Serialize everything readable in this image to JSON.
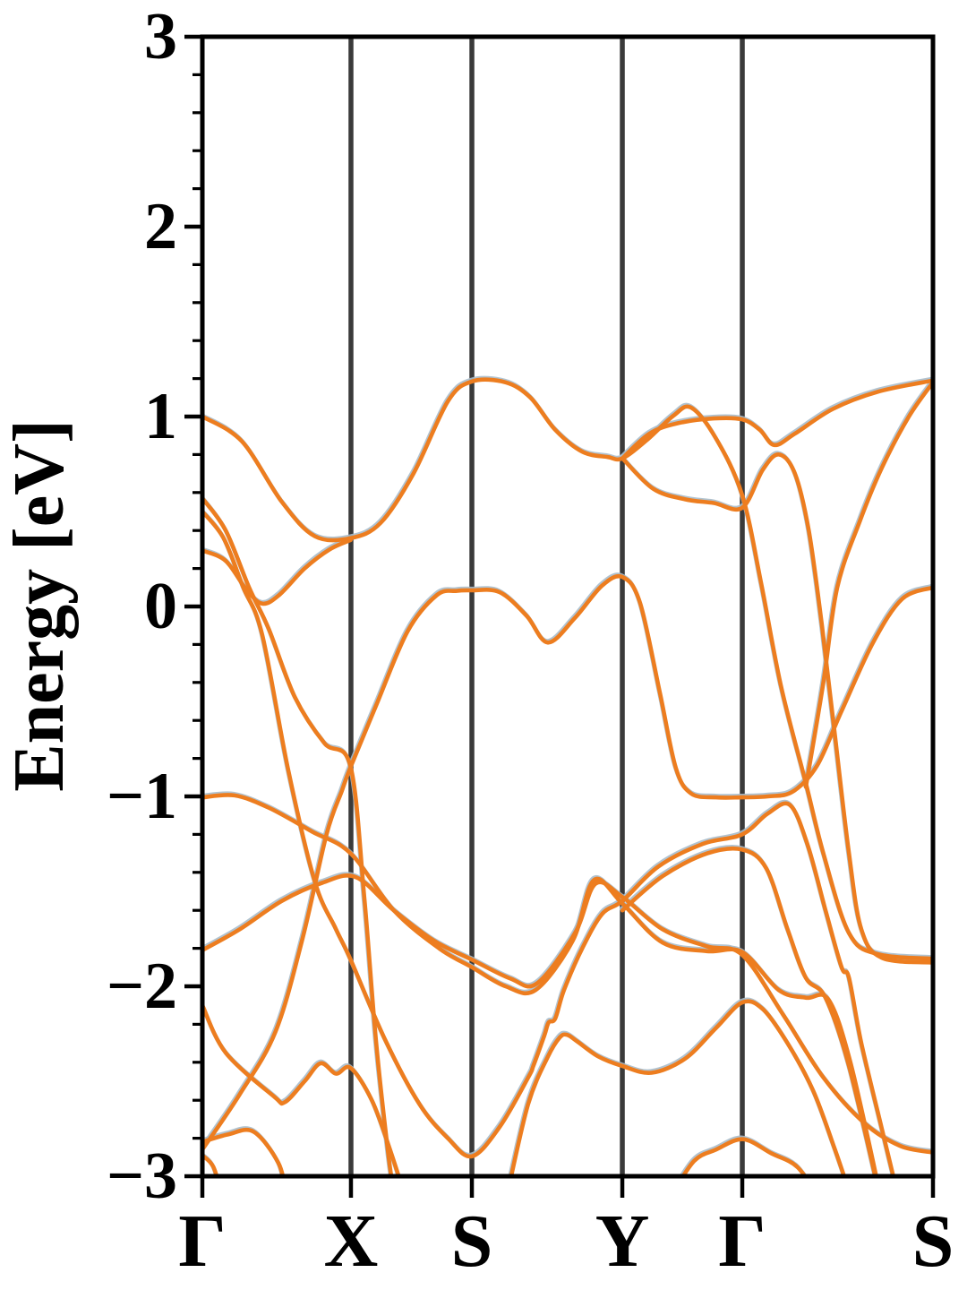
{
  "chart_data": {
    "type": "line",
    "title": "",
    "ylabel": "Energy [eV]",
    "xlabel": "",
    "ylim": [
      -3,
      3
    ],
    "yticks": [
      {
        "value": 3,
        "label": "3"
      },
      {
        "value": 2,
        "label": "2"
      },
      {
        "value": 1,
        "label": "1"
      },
      {
        "value": 0,
        "label": "0"
      },
      {
        "value": -1,
        "label": "−1"
      },
      {
        "value": -2,
        "label": "−2"
      },
      {
        "value": -3,
        "label": "−3"
      }
    ],
    "minor_tick_step": 0.2,
    "xticks": [
      {
        "label": "Γ",
        "pos": 0.0
      },
      {
        "label": "X",
        "pos": 0.2034
      },
      {
        "label": "S",
        "pos": 0.3689
      },
      {
        "label": "Y",
        "pos": 0.5748
      },
      {
        "label": "Γ",
        "pos": 0.739
      },
      {
        "label": "S",
        "pos": 1.0
      }
    ],
    "kpath_vlines": [
      0.2034,
      0.3689,
      0.5748,
      0.739
    ],
    "legend": null,
    "grid": false,
    "colors": {
      "band": "#ED7D1F",
      "band_halo": "#A9BDCB",
      "kline": "#3A3A3A",
      "spine": "#000000",
      "text": "#000000",
      "background": "#FFFFFF"
    },
    "series_description": "Electronic band structure: energy bands (eV) along k-path Γ-X-S-Y-Γ-S; x of each point is fractional distance along the k-path, y is energy in eV",
    "bands": [
      {
        "points": [
          [
            0,
            1.0
          ],
          [
            0.054,
            0.87
          ],
          [
            0.109,
            0.55
          ],
          [
            0.154,
            0.37
          ],
          [
            0.203,
            0.36
          ],
          [
            0.244,
            0.44
          ],
          [
            0.289,
            0.7
          ],
          [
            0.336,
            1.08
          ],
          [
            0.369,
            1.185
          ],
          [
            0.415,
            1.18
          ],
          [
            0.449,
            1.1
          ],
          [
            0.483,
            0.93
          ],
          [
            0.52,
            0.815
          ],
          [
            0.555,
            0.787
          ],
          [
            0.575,
            0.78
          ],
          [
            0.608,
            0.875
          ],
          [
            0.645,
            1.005
          ],
          [
            0.669,
            1.047
          ],
          [
            0.703,
            0.885
          ],
          [
            0.739,
            0.585
          ],
          [
            0.765,
            0.12
          ],
          [
            0.792,
            -0.42
          ],
          [
            0.826,
            -0.93
          ],
          [
            0.85,
            -1.3
          ],
          [
            0.885,
            -1.72
          ],
          [
            0.924,
            -1.83
          ],
          [
            1,
            -1.855
          ]
        ]
      },
      {
        "points": [
          [
            0.575,
            0.78
          ],
          [
            0.612,
            0.91
          ],
          [
            0.651,
            0.965
          ],
          [
            0.7,
            0.99
          ],
          [
            0.739,
            0.985
          ],
          [
            0.763,
            0.93
          ],
          [
            0.783,
            0.85
          ],
          [
            0.811,
            0.91
          ],
          [
            0.863,
            1.04
          ],
          [
            0.924,
            1.13
          ],
          [
            1,
            1.19
          ]
        ]
      },
      {
        "points": [
          [
            0.575,
            0.78
          ],
          [
            0.617,
            0.62
          ],
          [
            0.66,
            0.565
          ],
          [
            0.7,
            0.545
          ],
          [
            0.739,
            0.52
          ],
          [
            0.767,
            0.72
          ],
          [
            0.789,
            0.8
          ],
          [
            0.811,
            0.7
          ],
          [
            0.83,
            0.4
          ],
          [
            0.848,
            -0.1
          ],
          [
            0.865,
            -0.65
          ],
          [
            0.885,
            -1.3
          ],
          [
            0.902,
            -1.7
          ],
          [
            0.93,
            -1.85
          ],
          [
            1,
            -1.875
          ]
        ]
      },
      {
        "points": [
          [
            0,
            0.57
          ],
          [
            0.032,
            0.4
          ],
          [
            0.064,
            0.1
          ],
          [
            0.091,
            -0.12
          ],
          [
            0.127,
            -0.48
          ],
          [
            0.167,
            -0.72
          ],
          [
            0.203,
            -0.845
          ],
          [
            0.222,
            -1.55
          ],
          [
            0.238,
            -2.3
          ],
          [
            0.255,
            -2.9
          ],
          [
            0.263,
            -3.1
          ]
        ]
      },
      {
        "points": [
          [
            0,
            0.5
          ],
          [
            0.029,
            0.36
          ],
          [
            0.056,
            0.1
          ],
          [
            0.082,
            -0.15
          ],
          [
            0.118,
            -0.87
          ],
          [
            0.154,
            -1.45
          ],
          [
            0.183,
            -1.7
          ],
          [
            0.203,
            -1.86
          ],
          [
            0.25,
            -2.28
          ],
          [
            0.297,
            -2.62
          ],
          [
            0.336,
            -2.8
          ],
          [
            0.369,
            -2.895
          ],
          [
            0.407,
            -2.74
          ],
          [
            0.446,
            -2.48
          ],
          [
            0.453,
            -2.42
          ],
          [
            0.468,
            -2.26
          ],
          [
            0.474,
            -2.19
          ],
          [
            0.483,
            -2.17
          ],
          [
            0.495,
            -2.02
          ],
          [
            0.52,
            -1.8
          ],
          [
            0.547,
            -1.62
          ],
          [
            0.575,
            -1.55
          ],
          [
            0.624,
            -1.37
          ],
          [
            0.685,
            -1.25
          ],
          [
            0.739,
            -1.2
          ],
          [
            0.774,
            -1.09
          ],
          [
            0.804,
            -1.045
          ],
          [
            0.828,
            -1.25
          ],
          [
            0.853,
            -1.6
          ],
          [
            0.875,
            -1.9
          ],
          [
            0.885,
            -1.955
          ],
          [
            0.902,
            -2.3
          ],
          [
            0.93,
            -2.75
          ],
          [
            0.952,
            -3.1
          ]
        ]
      },
      {
        "points": [
          [
            0,
            -1.005
          ],
          [
            0.044,
            -0.995
          ],
          [
            0.091,
            -1.06
          ],
          [
            0.15,
            -1.185
          ],
          [
            0.203,
            -1.3
          ],
          [
            0.262,
            -1.6
          ],
          [
            0.324,
            -1.8
          ],
          [
            0.369,
            -1.9
          ],
          [
            0.415,
            -2.0
          ],
          [
            0.456,
            -2.02
          ],
          [
            0.507,
            -1.76
          ],
          [
            0.536,
            -1.44
          ],
          [
            0.575,
            -1.565
          ],
          [
            0.63,
            -1.77
          ],
          [
            0.691,
            -1.815
          ],
          [
            0.739,
            -1.82
          ],
          [
            0.789,
            -2.02
          ],
          [
            0.826,
            -2.06
          ],
          [
            0.857,
            -2.07
          ],
          [
            0.887,
            -2.4
          ],
          [
            0.928,
            -3.1
          ]
        ]
      },
      {
        "points": [
          [
            0,
            -1.81
          ],
          [
            0.051,
            -1.7
          ],
          [
            0.109,
            -1.55
          ],
          [
            0.164,
            -1.455
          ],
          [
            0.21,
            -1.425
          ],
          [
            0.262,
            -1.6
          ],
          [
            0.317,
            -1.76
          ],
          [
            0.369,
            -1.86
          ],
          [
            0.422,
            -1.96
          ],
          [
            0.458,
            -1.985
          ],
          [
            0.51,
            -1.72
          ],
          [
            0.538,
            -1.46
          ],
          [
            0.575,
            -1.53
          ],
          [
            0.63,
            -1.7
          ],
          [
            0.691,
            -1.79
          ],
          [
            0.739,
            -1.835
          ],
          [
            0.795,
            -2.15
          ],
          [
            0.85,
            -2.48
          ],
          [
            0.906,
            -2.72
          ],
          [
            0.955,
            -2.84
          ],
          [
            1,
            -2.875
          ]
        ]
      },
      {
        "points": [
          [
            0,
            -2.86
          ],
          [
            0.051,
            -2.57
          ],
          [
            0.1,
            -2.24
          ],
          [
            0.137,
            -1.75
          ],
          [
            0.17,
            -1.2
          ],
          [
            0.191,
            -0.97
          ],
          [
            0.203,
            -0.845
          ],
          [
            0.238,
            -0.52
          ],
          [
            0.281,
            -0.13
          ],
          [
            0.321,
            0.06
          ],
          [
            0.348,
            0.082
          ],
          [
            0.369,
            0.085
          ],
          [
            0.407,
            0.075
          ],
          [
            0.444,
            -0.05
          ],
          [
            0.473,
            -0.19
          ],
          [
            0.51,
            -0.06
          ],
          [
            0.547,
            0.11
          ],
          [
            0.575,
            0.155
          ],
          [
            0.599,
            0.02
          ],
          [
            0.626,
            -0.45
          ],
          [
            0.648,
            -0.85
          ],
          [
            0.669,
            -0.985
          ],
          [
            0.703,
            -1.005
          ],
          [
            0.739,
            -1.005
          ],
          [
            0.774,
            -1.0
          ],
          [
            0.808,
            -0.975
          ],
          [
            0.841,
            -0.84
          ],
          [
            0.875,
            -0.55
          ],
          [
            0.918,
            -0.19
          ],
          [
            0.958,
            0.04
          ],
          [
            1,
            0.1
          ]
        ]
      },
      {
        "points": [
          [
            0,
            -2.1
          ],
          [
            0.032,
            -2.35
          ],
          [
            0.098,
            -2.58
          ],
          [
            0.113,
            -2.61
          ],
          [
            0.14,
            -2.5
          ],
          [
            0.162,
            -2.405
          ],
          [
            0.183,
            -2.46
          ],
          [
            0.203,
            -2.43
          ],
          [
            0.232,
            -2.6
          ],
          [
            0.256,
            -2.85
          ],
          [
            0.277,
            -3.1
          ]
        ]
      },
      {
        "points": [
          [
            0,
            -2.82
          ],
          [
            0.035,
            -2.78
          ],
          [
            0.07,
            -2.765
          ],
          [
            0.104,
            -2.93
          ],
          [
            0.115,
            -3.1
          ]
        ]
      },
      {
        "points": [
          [
            0,
            -2.89
          ],
          [
            0.015,
            -2.95
          ],
          [
            0.027,
            -3.1
          ]
        ]
      },
      {
        "points": [
          [
            0,
            0.295
          ],
          [
            0.032,
            0.24
          ],
          [
            0.06,
            0.09
          ],
          [
            0.082,
            0.015
          ],
          [
            0.105,
            0.06
          ],
          [
            0.14,
            0.2
          ],
          [
            0.174,
            0.3
          ],
          [
            0.203,
            0.35
          ]
        ]
      },
      {
        "points": [
          [
            0.826,
            -0.95
          ],
          [
            0.85,
            -0.4
          ],
          [
            0.869,
            0.1
          ],
          [
            0.9,
            0.45
          ],
          [
            0.93,
            0.73
          ],
          [
            0.967,
            1.0
          ],
          [
            1,
            1.18
          ]
        ]
      },
      {
        "points": [
          [
            0.642,
            -3.1
          ],
          [
            0.673,
            -2.92
          ],
          [
            0.703,
            -2.86
          ],
          [
            0.74,
            -2.805
          ],
          [
            0.779,
            -2.88
          ],
          [
            0.814,
            -2.95
          ],
          [
            0.842,
            -3.1
          ]
        ]
      },
      {
        "points": [
          [
            0.575,
            -1.6
          ],
          [
            0.63,
            -1.42
          ],
          [
            0.691,
            -1.3
          ],
          [
            0.739,
            -1.28
          ],
          [
            0.772,
            -1.38
          ],
          [
            0.801,
            -1.7
          ],
          [
            0.826,
            -1.955
          ],
          [
            0.853,
            -2.06
          ],
          [
            0.885,
            -2.42
          ],
          [
            0.927,
            -3.1
          ]
        ]
      },
      {
        "points": [
          [
            0.417,
            -3.1
          ],
          [
            0.446,
            -2.62
          ],
          [
            0.473,
            -2.37
          ],
          [
            0.489,
            -2.27
          ],
          [
            0.499,
            -2.255
          ],
          [
            0.513,
            -2.29
          ],
          [
            0.542,
            -2.37
          ],
          [
            0.575,
            -2.42
          ],
          [
            0.615,
            -2.455
          ],
          [
            0.661,
            -2.38
          ],
          [
            0.703,
            -2.22
          ],
          [
            0.739,
            -2.085
          ],
          [
            0.767,
            -2.12
          ],
          [
            0.801,
            -2.3
          ],
          [
            0.836,
            -2.55
          ],
          [
            0.865,
            -2.85
          ],
          [
            0.887,
            -3.1
          ]
        ]
      }
    ]
  }
}
